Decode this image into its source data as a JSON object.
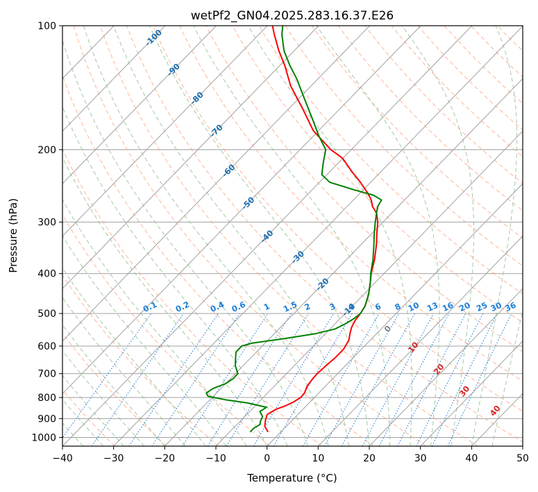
{
  "chart_data": {
    "type": "skew-t",
    "title": "wetPf2_GN04.2025.283.16.37.E26",
    "xlabel": "Temperature (°C)",
    "ylabel": "Pressure (hPa)",
    "xlim": [
      -40,
      50
    ],
    "ylim": [
      1050,
      100
    ],
    "y_scale": "log",
    "grid": true,
    "x_ticks": [
      "−40",
      "−30",
      "−20",
      "−10",
      "0",
      "10",
      "20",
      "30",
      "40",
      "50"
    ],
    "y_ticks": [
      "100",
      "200",
      "300",
      "400",
      "500",
      "600",
      "700",
      "800",
      "900",
      "1000"
    ],
    "colors": {
      "temperature": "#ff0000",
      "dewpoint": "#008000",
      "dry_adiabat": "#ffa07a",
      "moist_adiabat": "#90c090",
      "mixing_ratio": "#1e7fd6",
      "isotherm": "#a0a0a0",
      "isotherm_label": "#1f6fb0",
      "moist_label_negative": "#808080",
      "moist_label_positive": "#d62728"
    },
    "series": [
      {
        "key": "temperature",
        "points": [
          [
            970,
            -2.5
          ],
          [
            940,
            -4.2
          ],
          [
            910,
            -5.2
          ],
          [
            880,
            -6
          ],
          [
            855,
            -5.3
          ],
          [
            840,
            -4.2
          ],
          [
            820,
            -3.2
          ],
          [
            800,
            -2.7
          ],
          [
            780,
            -2.8
          ],
          [
            750,
            -3.6
          ],
          [
            720,
            -3.9
          ],
          [
            700,
            -4
          ],
          [
            670,
            -3.8
          ],
          [
            640,
            -3.5
          ],
          [
            610,
            -3.5
          ],
          [
            580,
            -4.2
          ],
          [
            560,
            -5.2
          ],
          [
            540,
            -6.1
          ],
          [
            520,
            -6.7
          ],
          [
            500,
            -7
          ],
          [
            480,
            -7.5
          ],
          [
            450,
            -9
          ],
          [
            420,
            -11
          ],
          [
            400,
            -12.5
          ],
          [
            370,
            -14.5
          ],
          [
            340,
            -17
          ],
          [
            320,
            -19
          ],
          [
            300,
            -21
          ],
          [
            285,
            -23
          ],
          [
            275,
            -25
          ],
          [
            265,
            -26.5
          ],
          [
            255,
            -28.5
          ],
          [
            240,
            -32
          ],
          [
            225,
            -36
          ],
          [
            210,
            -40
          ],
          [
            200,
            -44
          ],
          [
            180,
            -51
          ],
          [
            160,
            -57
          ],
          [
            140,
            -64
          ],
          [
            125,
            -69
          ],
          [
            115,
            -73
          ],
          [
            105,
            -77
          ],
          [
            100,
            -79
          ]
        ]
      },
      {
        "key": "dewpoint",
        "points": [
          [
            970,
            -6
          ],
          [
            950,
            -6
          ],
          [
            930,
            -5.5
          ],
          [
            915,
            -6
          ],
          [
            890,
            -6.5
          ],
          [
            865,
            -8
          ],
          [
            845,
            -7.5
          ],
          [
            825,
            -12
          ],
          [
            810,
            -17
          ],
          [
            795,
            -21
          ],
          [
            780,
            -22
          ],
          [
            760,
            -21.5
          ],
          [
            740,
            -20
          ],
          [
            720,
            -19.5
          ],
          [
            700,
            -19.5
          ],
          [
            670,
            -21.5
          ],
          [
            640,
            -23
          ],
          [
            620,
            -24
          ],
          [
            600,
            -24
          ],
          [
            590,
            -22.5
          ],
          [
            575,
            -17
          ],
          [
            560,
            -12
          ],
          [
            545,
            -9
          ],
          [
            530,
            -8
          ],
          [
            515,
            -7.3
          ],
          [
            500,
            -7
          ],
          [
            480,
            -7.5
          ],
          [
            450,
            -9
          ],
          [
            420,
            -11
          ],
          [
            400,
            -12.6
          ],
          [
            370,
            -14.8
          ],
          [
            340,
            -17.5
          ],
          [
            320,
            -19.5
          ],
          [
            300,
            -21.5
          ],
          [
            285,
            -23
          ],
          [
            275,
            -24
          ],
          [
            265,
            -24.5
          ],
          [
            258,
            -27
          ],
          [
            250,
            -32
          ],
          [
            240,
            -38
          ],
          [
            230,
            -41
          ],
          [
            215,
            -43
          ],
          [
            200,
            -45
          ],
          [
            185,
            -49
          ],
          [
            170,
            -53
          ],
          [
            150,
            -59
          ],
          [
            135,
            -64
          ],
          [
            125,
            -68
          ],
          [
            115,
            -72
          ],
          [
            105,
            -75.5
          ],
          [
            100,
            -77
          ]
        ]
      }
    ],
    "isotherm_labels": [
      "-100",
      "-90",
      "-80",
      "-70",
      "-60",
      "-50",
      "-40",
      "-30",
      "-20",
      "-10"
    ],
    "mixing_ratio_labels": [
      "0.1",
      "0.2",
      "0.4",
      "0.6",
      "1",
      "1.5",
      "2",
      "3",
      "4",
      "6",
      "8",
      "10",
      "13",
      "16",
      "20",
      "25",
      "30",
      "36"
    ],
    "moist_adiabat_labels": [
      "0",
      "10",
      "20",
      "30",
      "40"
    ]
  }
}
